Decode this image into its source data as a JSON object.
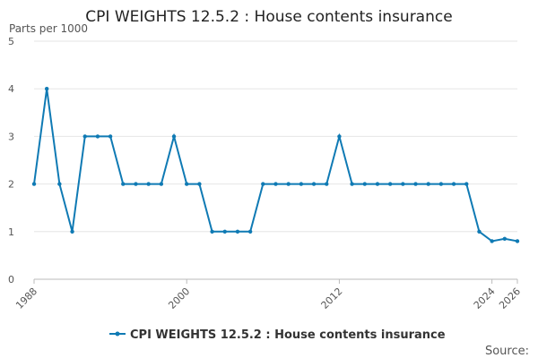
{
  "chart_data": {
    "type": "line",
    "title": "CPI WEIGHTS 12.5.2 : House contents insurance",
    "ylabel": "Parts per 1000",
    "xlabel": "",
    "xlim": [
      1988,
      2026
    ],
    "ylim": [
      0,
      5
    ],
    "y_ticks": [
      "0",
      "1",
      "2",
      "3",
      "4",
      "5"
    ],
    "x_ticks": [
      "1988",
      "2000",
      "2012",
      "2024",
      "2026"
    ],
    "grid": true,
    "legend": "bottom",
    "source_label": "Source:",
    "series": [
      {
        "name": "CPI WEIGHTS 12.5.2 : House contents insurance",
        "color": "#0f7ab4",
        "x": [
          1988,
          1989,
          1990,
          1991,
          1992,
          1993,
          1994,
          1995,
          1996,
          1997,
          1998,
          1999,
          2000,
          2001,
          2002,
          2003,
          2004,
          2005,
          2006,
          2007,
          2008,
          2009,
          2010,
          2011,
          2012,
          2013,
          2014,
          2015,
          2016,
          2017,
          2018,
          2019,
          2020,
          2021,
          2022,
          2023,
          2024,
          2025,
          2026
        ],
        "y": [
          2,
          4,
          2,
          1,
          3,
          3,
          3,
          2,
          2,
          2,
          2,
          3,
          2,
          2,
          1,
          1,
          1,
          1,
          2,
          2,
          2,
          2,
          2,
          2,
          3,
          2,
          2,
          2,
          2,
          2,
          2,
          2,
          2,
          2,
          2,
          1,
          0.8,
          0.85,
          0.8
        ]
      }
    ]
  }
}
